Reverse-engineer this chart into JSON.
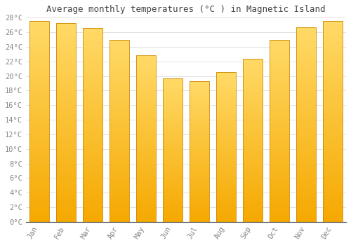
{
  "title": "Average monthly temperatures (°C ) in Magnetic Island",
  "months": [
    "Jan",
    "Feb",
    "Mar",
    "Apr",
    "May",
    "Jun",
    "Jul",
    "Aug",
    "Sep",
    "Oct",
    "Nov",
    "Dec"
  ],
  "values": [
    27.5,
    27.3,
    26.6,
    25.0,
    22.8,
    19.7,
    19.3,
    20.5,
    22.4,
    25.0,
    26.7,
    27.5
  ],
  "bar_color_top": "#FFD966",
  "bar_color_bottom": "#F5A800",
  "bar_edge_color": "#CC8800",
  "background_color": "#FFFFFF",
  "grid_color": "#DDDDDD",
  "ylim": [
    0,
    28
  ],
  "ytick_step": 2,
  "title_fontsize": 9,
  "tick_fontsize": 7.5,
  "tick_color": "#888888",
  "font_family": "monospace"
}
